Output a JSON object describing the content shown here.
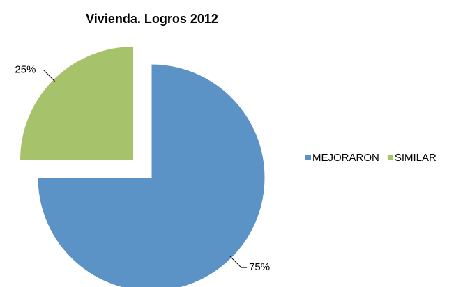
{
  "chart_data": {
    "type": "pie",
    "title": "Vivienda. Logros 2012",
    "categories": [
      "MEJORARON",
      "SIMILAR"
    ],
    "values": [
      75,
      25
    ],
    "value_labels": [
      "75%",
      "25%"
    ],
    "colors": [
      "#5b93c7",
      "#a6c36c"
    ],
    "exploded": [
      false,
      true
    ],
    "legend": "right"
  }
}
